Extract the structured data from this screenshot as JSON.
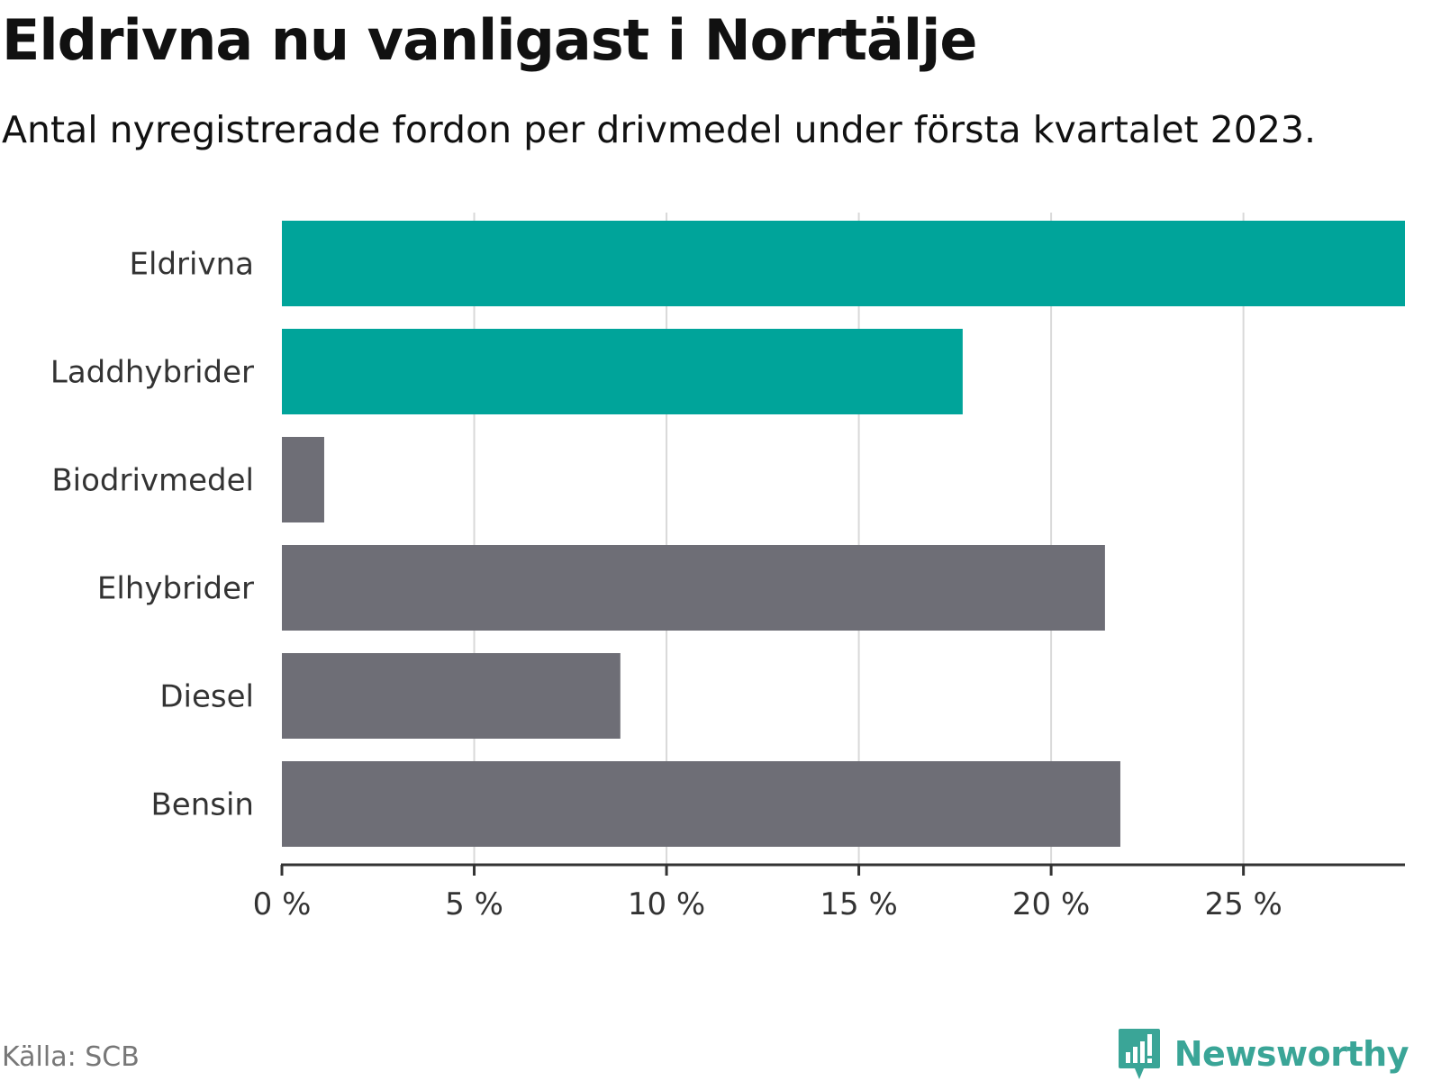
{
  "title": "Eldrivna nu vanligast i Norrtälje",
  "subtitle": "Antal nyregistrerade fordon per drivmedel under första kvartalet 2023.",
  "source": "Källa: SCB",
  "brand": "Newsworthy",
  "colors": {
    "highlight": "#00a49a",
    "base": "#6e6e76",
    "grid": "#d9d9d9",
    "axis": "#333333",
    "brand": "#3aa597"
  },
  "chart_data": {
    "type": "bar",
    "orientation": "horizontal",
    "title": "Eldrivna nu vanligast i Norrtälje",
    "subtitle": "Antal nyregistrerade fordon per drivmedel under första kvartalet 2023.",
    "xlabel": "",
    "ylabel": "",
    "xlim": [
      0,
      29.2
    ],
    "ticks": [
      0,
      5,
      10,
      15,
      20,
      25
    ],
    "tick_labels": [
      "0 %",
      "5 %",
      "10 %",
      "15 %",
      "20 %",
      "25 %"
    ],
    "grid": true,
    "categories": [
      "Eldrivna",
      "Laddhybrider",
      "Biodrivmedel",
      "Elhybrider",
      "Diesel",
      "Bensin"
    ],
    "values": [
      29.2,
      17.7,
      1.1,
      21.4,
      8.8,
      21.8
    ],
    "highlighted": [
      true,
      true,
      false,
      false,
      false,
      false
    ]
  }
}
